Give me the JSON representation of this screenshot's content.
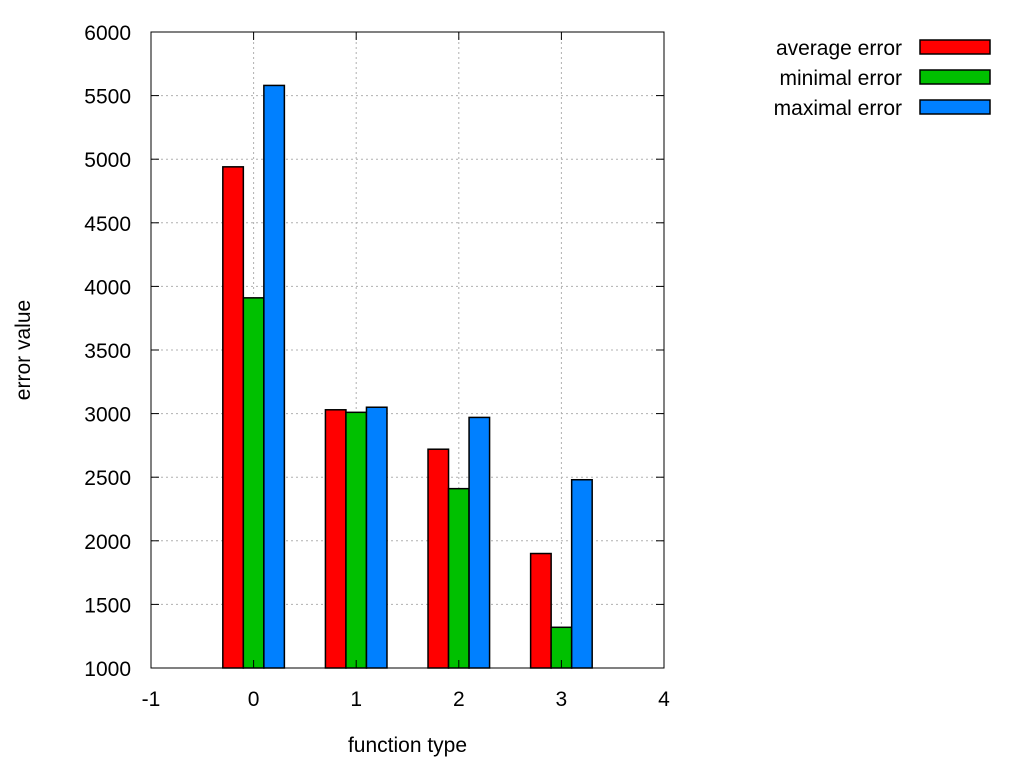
{
  "chart_data": {
    "type": "bar",
    "title": "",
    "xlabel": "function type",
    "ylabel": "error value",
    "categories": [
      "0",
      "1",
      "2",
      "3"
    ],
    "x": [
      0,
      1,
      2,
      3
    ],
    "xlim": [
      -1,
      4
    ],
    "ylim": [
      1000,
      6000
    ],
    "xticks": [
      "-1",
      "0",
      "1",
      "2",
      "3",
      "4"
    ],
    "yticks": [
      "1000",
      "1500",
      "2000",
      "2500",
      "3000",
      "3500",
      "4000",
      "4500",
      "5000",
      "5500",
      "6000"
    ],
    "grid": true,
    "legend_position": "top-right, outside plot",
    "series": [
      {
        "name": "average error",
        "color": "#ff0000",
        "values": [
          4940,
          3030,
          2720,
          1900
        ]
      },
      {
        "name": "minimal error",
        "color": "#00c000",
        "values": [
          3910,
          3010,
          2410,
          1320
        ]
      },
      {
        "name": "maximal error",
        "color": "#0080ff",
        "values": [
          5580,
          3050,
          2970,
          2480
        ]
      }
    ]
  }
}
